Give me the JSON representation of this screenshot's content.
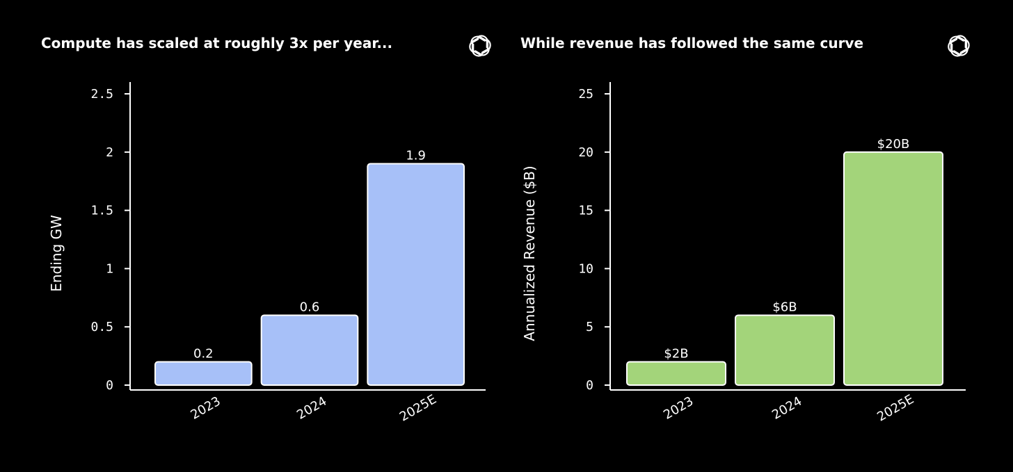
{
  "chart_data": [
    {
      "type": "bar",
      "title": "Compute has scaled at roughly 3x per year...",
      "xlabel": "",
      "ylabel": "Ending GW",
      "categories": [
        "2023",
        "2024",
        "2025E"
      ],
      "values": [
        0.2,
        0.6,
        1.9
      ],
      "data_labels": [
        "0.2",
        "0.6",
        "1.9"
      ],
      "yticks": [
        "0",
        "0.5",
        "1",
        "1.5",
        "2",
        "2.5"
      ],
      "ytick_values": [
        0,
        0.5,
        1,
        1.5,
        2,
        2.5
      ],
      "ylim": [
        0,
        2.5
      ],
      "bar_color": "#a7c0f8",
      "grid": false,
      "x_tick_rotation": "rotated"
    },
    {
      "type": "bar",
      "title": "While revenue has followed the same curve",
      "xlabel": "",
      "ylabel": "Annualized Revenue ($B)",
      "categories": [
        "2023",
        "2024",
        "2025E"
      ],
      "values": [
        2,
        6,
        20
      ],
      "data_labels": [
        "$2B",
        "$6B",
        "$20B"
      ],
      "yticks": [
        "0",
        "5",
        "10",
        "15",
        "20",
        "25"
      ],
      "ytick_values": [
        0,
        5,
        10,
        15,
        20,
        25
      ],
      "ylim": [
        0,
        25
      ],
      "bar_color": "#a3d47a",
      "grid": false,
      "x_tick_rotation": "rotated"
    }
  ],
  "logo": {
    "icon": "openai-logo-icon"
  },
  "colors": {
    "background": "#000000",
    "text": "#ffffff",
    "bar_outline": "#ffffff"
  }
}
